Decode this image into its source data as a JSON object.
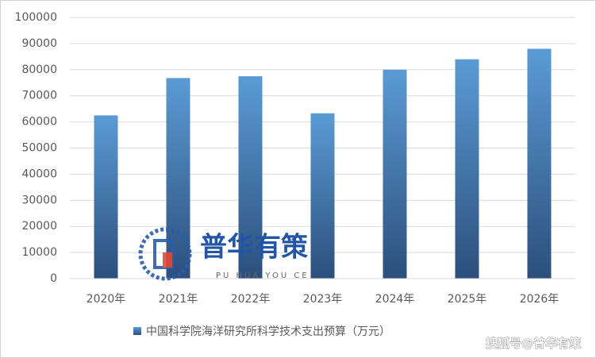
{
  "chart_data": {
    "type": "bar",
    "categories": [
      "2020年",
      "2021年",
      "2022年",
      "2023年",
      "2024年",
      "2025年",
      "2026年"
    ],
    "series": [
      {
        "name": "中国科学院海洋研究所科学技术支出预算（万元）",
        "color": "#5b9bd5",
        "values": [
          62500,
          76800,
          77500,
          63300,
          80000,
          84000,
          88000
        ]
      }
    ],
    "ylim": [
      0,
      100000
    ],
    "yticks": [
      0,
      10000,
      20000,
      30000,
      40000,
      50000,
      60000,
      70000,
      80000,
      90000,
      100000
    ],
    "grid": true,
    "legend": "bottom"
  },
  "watermark": {
    "brand": "普华有策",
    "brand_pinyin": "PU HUA YOU CE",
    "source": "搜狐号@普华有策"
  }
}
